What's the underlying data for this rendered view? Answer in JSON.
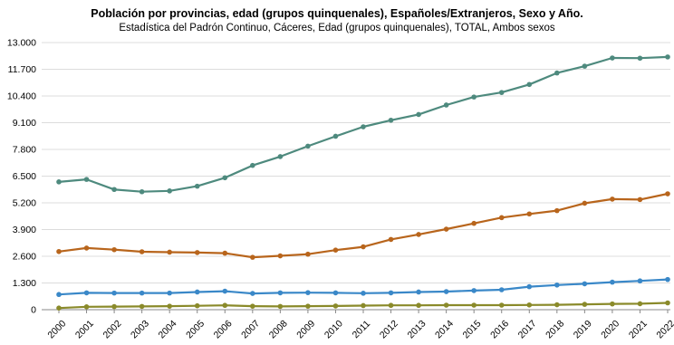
{
  "chart_data": {
    "type": "line",
    "title": "Población por provincias, edad (grupos quinquenales), Españoles/Extranjeros, Sexo y Año.",
    "subtitle": "Estadística del Padrón Continuo, Cáceres, Edad (grupos quinquenales), TOTAL, Ambos sexos",
    "x": [
      "2000",
      "2001",
      "2002",
      "2003",
      "2004",
      "2005",
      "2006",
      "2007",
      "2008",
      "2009",
      "2010",
      "2011",
      "2012",
      "2013",
      "2014",
      "2015",
      "2016",
      "2017",
      "2018",
      "2019",
      "2020",
      "2021",
      "2022"
    ],
    "y_ticks": [
      "0",
      "1.300",
      "2.600",
      "3.900",
      "5.200",
      "6.500",
      "7.800",
      "9.100",
      "10.400",
      "11.700",
      "13.000"
    ],
    "ylim": [
      0,
      13000
    ],
    "grid": true,
    "series": [
      {
        "color": "#4e8a7e",
        "values": [
          6220,
          6340,
          5850,
          5740,
          5780,
          6010,
          6420,
          7020,
          7450,
          7960,
          8440,
          8900,
          9220,
          9500,
          9960,
          10350,
          10570,
          10960,
          11520,
          11850,
          12250,
          12240,
          12300
        ]
      },
      {
        "color": "#b8651c",
        "values": [
          2830,
          3000,
          2920,
          2820,
          2800,
          2780,
          2750,
          2550,
          2620,
          2700,
          2900,
          3060,
          3420,
          3660,
          3920,
          4200,
          4480,
          4660,
          4820,
          5180,
          5380,
          5360,
          5640
        ]
      },
      {
        "color": "#3a88c8",
        "values": [
          740,
          820,
          810,
          810,
          810,
          860,
          900,
          790,
          820,
          830,
          820,
          800,
          820,
          860,
          880,
          930,
          970,
          1120,
          1200,
          1260,
          1340,
          1400,
          1470
        ]
      },
      {
        "color": "#8a8a2a",
        "values": [
          80,
          140,
          150,
          160,
          170,
          190,
          210,
          170,
          160,
          170,
          180,
          200,
          210,
          210,
          220,
          220,
          220,
          230,
          240,
          260,
          280,
          290,
          330
        ]
      }
    ]
  }
}
